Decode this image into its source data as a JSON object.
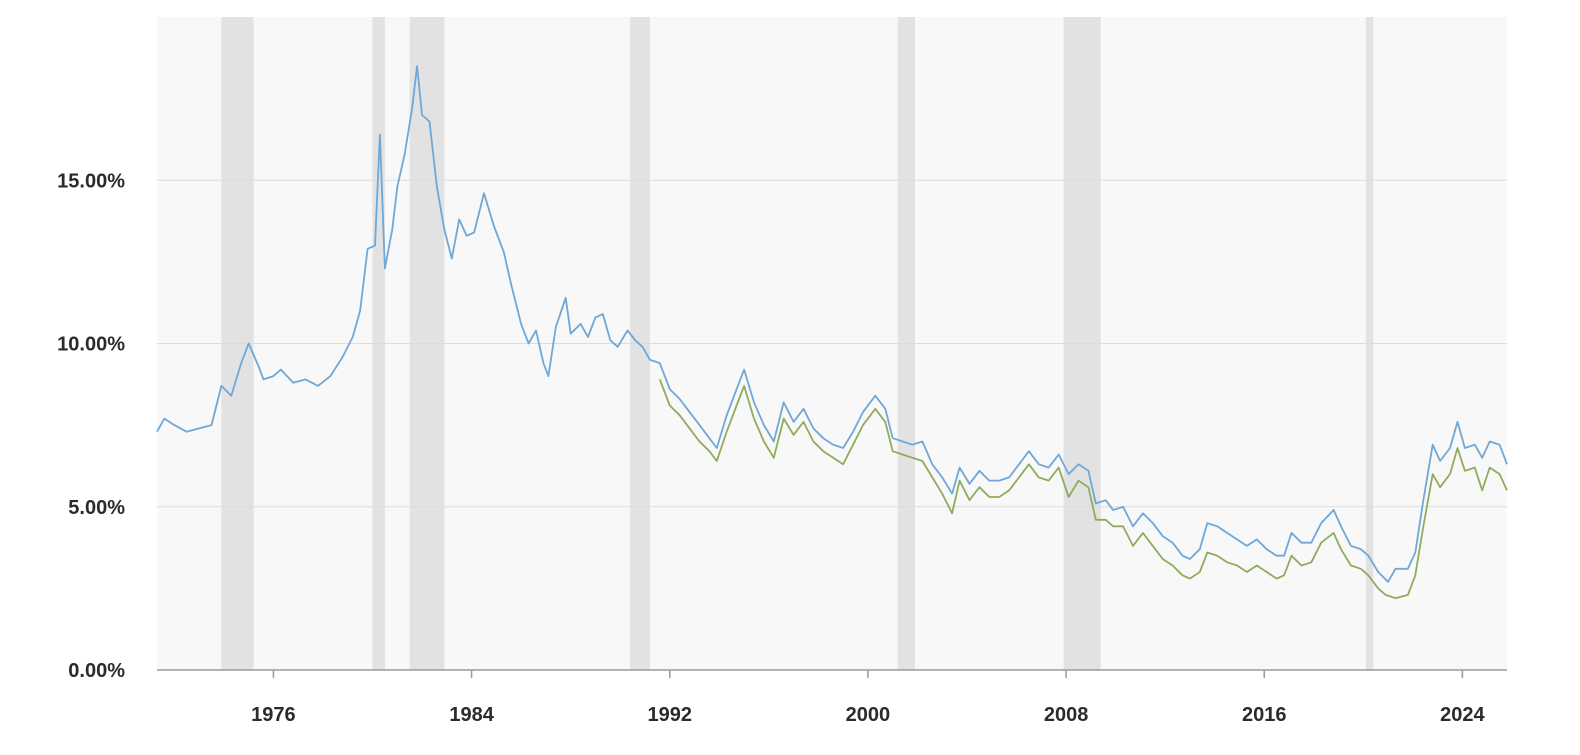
{
  "chart_data": {
    "type": "line",
    "xlim": [
      1971.3,
      2025.8
    ],
    "ylim": [
      0,
      20
    ],
    "x_ticks": [
      {
        "x": 1976,
        "label": "1976"
      },
      {
        "x": 1984,
        "label": "1984"
      },
      {
        "x": 1992,
        "label": "1992"
      },
      {
        "x": 2000,
        "label": "2000"
      },
      {
        "x": 2008,
        "label": "2008"
      },
      {
        "x": 2016,
        "label": "2016"
      },
      {
        "x": 2024,
        "label": "2024"
      }
    ],
    "y_ticks": [
      {
        "y": 0,
        "label": "0.00%"
      },
      {
        "y": 5,
        "label": "5.00%"
      },
      {
        "y": 10,
        "label": "10.00%"
      },
      {
        "y": 15,
        "label": "15.00%"
      }
    ],
    "grid": "horizontal",
    "recession_bands": [
      [
        1973.9,
        1975.2
      ],
      [
        1980.0,
        1980.5
      ],
      [
        1981.5,
        1982.9
      ],
      [
        1990.4,
        1991.2
      ],
      [
        2001.2,
        2001.9
      ],
      [
        2007.9,
        2009.4
      ],
      [
        2020.1,
        2020.4
      ]
    ],
    "series": [
      {
        "color": "#6fa8d6",
        "points": [
          [
            1971.3,
            7.3
          ],
          [
            1971.6,
            7.7
          ],
          [
            1972.0,
            7.5
          ],
          [
            1972.5,
            7.3
          ],
          [
            1973.0,
            7.4
          ],
          [
            1973.5,
            7.5
          ],
          [
            1973.9,
            8.7
          ],
          [
            1974.3,
            8.4
          ],
          [
            1974.7,
            9.4
          ],
          [
            1975.0,
            10.0
          ],
          [
            1975.4,
            9.3
          ],
          [
            1975.6,
            8.9
          ],
          [
            1976.0,
            9.0
          ],
          [
            1976.3,
            9.2
          ],
          [
            1976.8,
            8.8
          ],
          [
            1977.3,
            8.9
          ],
          [
            1977.8,
            8.7
          ],
          [
            1978.3,
            9.0
          ],
          [
            1978.8,
            9.6
          ],
          [
            1979.2,
            10.2
          ],
          [
            1979.5,
            11.0
          ],
          [
            1979.8,
            12.9
          ],
          [
            1980.1,
            13.0
          ],
          [
            1980.3,
            16.4
          ],
          [
            1980.5,
            12.3
          ],
          [
            1980.8,
            13.5
          ],
          [
            1981.0,
            14.8
          ],
          [
            1981.3,
            15.8
          ],
          [
            1981.6,
            17.2
          ],
          [
            1981.8,
            18.5
          ],
          [
            1982.0,
            17.0
          ],
          [
            1982.3,
            16.8
          ],
          [
            1982.6,
            14.8
          ],
          [
            1982.9,
            13.5
          ],
          [
            1983.2,
            12.6
          ],
          [
            1983.5,
            13.8
          ],
          [
            1983.8,
            13.3
          ],
          [
            1984.1,
            13.4
          ],
          [
            1984.5,
            14.6
          ],
          [
            1984.9,
            13.6
          ],
          [
            1985.3,
            12.8
          ],
          [
            1985.6,
            11.8
          ],
          [
            1986.0,
            10.6
          ],
          [
            1986.3,
            10.0
          ],
          [
            1986.6,
            10.4
          ],
          [
            1986.9,
            9.4
          ],
          [
            1987.1,
            9.0
          ],
          [
            1987.4,
            10.5
          ],
          [
            1987.8,
            11.4
          ],
          [
            1988.0,
            10.3
          ],
          [
            1988.4,
            10.6
          ],
          [
            1988.7,
            10.2
          ],
          [
            1989.0,
            10.8
          ],
          [
            1989.3,
            10.9
          ],
          [
            1989.6,
            10.1
          ],
          [
            1989.9,
            9.9
          ],
          [
            1990.3,
            10.4
          ],
          [
            1990.6,
            10.1
          ],
          [
            1990.9,
            9.9
          ],
          [
            1991.2,
            9.5
          ],
          [
            1991.6,
            9.4
          ],
          [
            1992.0,
            8.6
          ],
          [
            1992.4,
            8.3
          ],
          [
            1992.8,
            7.9
          ],
          [
            1993.2,
            7.5
          ],
          [
            1993.6,
            7.1
          ],
          [
            1993.9,
            6.8
          ],
          [
            1994.3,
            7.8
          ],
          [
            1994.7,
            8.6
          ],
          [
            1995.0,
            9.2
          ],
          [
            1995.4,
            8.2
          ],
          [
            1995.8,
            7.5
          ],
          [
            1996.2,
            7.0
          ],
          [
            1996.6,
            8.2
          ],
          [
            1997.0,
            7.6
          ],
          [
            1997.4,
            8.0
          ],
          [
            1997.8,
            7.4
          ],
          [
            1998.2,
            7.1
          ],
          [
            1998.6,
            6.9
          ],
          [
            1999.0,
            6.8
          ],
          [
            1999.4,
            7.3
          ],
          [
            1999.8,
            7.9
          ],
          [
            2000.3,
            8.4
          ],
          [
            2000.7,
            8.0
          ],
          [
            2001.0,
            7.1
          ],
          [
            2001.4,
            7.0
          ],
          [
            2001.8,
            6.9
          ],
          [
            2002.2,
            7.0
          ],
          [
            2002.6,
            6.3
          ],
          [
            2003.0,
            5.9
          ],
          [
            2003.4,
            5.4
          ],
          [
            2003.7,
            6.2
          ],
          [
            2004.1,
            5.7
          ],
          [
            2004.5,
            6.1
          ],
          [
            2004.9,
            5.8
          ],
          [
            2005.3,
            5.8
          ],
          [
            2005.7,
            5.9
          ],
          [
            2006.1,
            6.3
          ],
          [
            2006.5,
            6.7
          ],
          [
            2006.9,
            6.3
          ],
          [
            2007.3,
            6.2
          ],
          [
            2007.7,
            6.6
          ],
          [
            2008.1,
            6.0
          ],
          [
            2008.5,
            6.3
          ],
          [
            2008.9,
            6.1
          ],
          [
            2009.2,
            5.1
          ],
          [
            2009.6,
            5.2
          ],
          [
            2009.9,
            4.9
          ],
          [
            2010.3,
            5.0
          ],
          [
            2010.7,
            4.4
          ],
          [
            2011.1,
            4.8
          ],
          [
            2011.5,
            4.5
          ],
          [
            2011.9,
            4.1
          ],
          [
            2012.3,
            3.9
          ],
          [
            2012.7,
            3.5
          ],
          [
            2013.0,
            3.4
          ],
          [
            2013.4,
            3.7
          ],
          [
            2013.7,
            4.5
          ],
          [
            2014.1,
            4.4
          ],
          [
            2014.5,
            4.2
          ],
          [
            2014.9,
            4.0
          ],
          [
            2015.3,
            3.8
          ],
          [
            2015.7,
            4.0
          ],
          [
            2016.1,
            3.7
          ],
          [
            2016.5,
            3.5
          ],
          [
            2016.8,
            3.5
          ],
          [
            2017.1,
            4.2
          ],
          [
            2017.5,
            3.9
          ],
          [
            2017.9,
            3.9
          ],
          [
            2018.3,
            4.5
          ],
          [
            2018.8,
            4.9
          ],
          [
            2019.1,
            4.4
          ],
          [
            2019.5,
            3.8
          ],
          [
            2019.9,
            3.7
          ],
          [
            2020.2,
            3.5
          ],
          [
            2020.6,
            3.0
          ],
          [
            2021.0,
            2.7
          ],
          [
            2021.3,
            3.1
          ],
          [
            2021.8,
            3.1
          ],
          [
            2022.1,
            3.6
          ],
          [
            2022.4,
            5.1
          ],
          [
            2022.8,
            6.9
          ],
          [
            2023.1,
            6.4
          ],
          [
            2023.5,
            6.8
          ],
          [
            2023.8,
            7.6
          ],
          [
            2024.1,
            6.8
          ],
          [
            2024.5,
            6.9
          ],
          [
            2024.8,
            6.5
          ],
          [
            2025.1,
            7.0
          ],
          [
            2025.5,
            6.9
          ],
          [
            2025.8,
            6.3
          ]
        ]
      },
      {
        "color": "#8fac5c",
        "points": [
          [
            1991.6,
            8.9
          ],
          [
            1992.0,
            8.1
          ],
          [
            1992.4,
            7.8
          ],
          [
            1992.8,
            7.4
          ],
          [
            1993.2,
            7.0
          ],
          [
            1993.6,
            6.7
          ],
          [
            1993.9,
            6.4
          ],
          [
            1994.3,
            7.3
          ],
          [
            1994.7,
            8.1
          ],
          [
            1995.0,
            8.7
          ],
          [
            1995.4,
            7.7
          ],
          [
            1995.8,
            7.0
          ],
          [
            1996.2,
            6.5
          ],
          [
            1996.6,
            7.7
          ],
          [
            1997.0,
            7.2
          ],
          [
            1997.4,
            7.6
          ],
          [
            1997.8,
            7.0
          ],
          [
            1998.2,
            6.7
          ],
          [
            1998.6,
            6.5
          ],
          [
            1999.0,
            6.3
          ],
          [
            1999.4,
            6.9
          ],
          [
            1999.8,
            7.5
          ],
          [
            2000.3,
            8.0
          ],
          [
            2000.7,
            7.6
          ],
          [
            2001.0,
            6.7
          ],
          [
            2001.4,
            6.6
          ],
          [
            2001.8,
            6.5
          ],
          [
            2002.2,
            6.4
          ],
          [
            2002.6,
            5.9
          ],
          [
            2003.0,
            5.4
          ],
          [
            2003.4,
            4.8
          ],
          [
            2003.7,
            5.8
          ],
          [
            2004.1,
            5.2
          ],
          [
            2004.5,
            5.6
          ],
          [
            2004.9,
            5.3
          ],
          [
            2005.3,
            5.3
          ],
          [
            2005.7,
            5.5
          ],
          [
            2006.1,
            5.9
          ],
          [
            2006.5,
            6.3
          ],
          [
            2006.9,
            5.9
          ],
          [
            2007.3,
            5.8
          ],
          [
            2007.7,
            6.2
          ],
          [
            2008.1,
            5.3
          ],
          [
            2008.5,
            5.8
          ],
          [
            2008.9,
            5.6
          ],
          [
            2009.2,
            4.6
          ],
          [
            2009.6,
            4.6
          ],
          [
            2009.9,
            4.4
          ],
          [
            2010.3,
            4.4
          ],
          [
            2010.7,
            3.8
          ],
          [
            2011.1,
            4.2
          ],
          [
            2011.5,
            3.8
          ],
          [
            2011.9,
            3.4
          ],
          [
            2012.3,
            3.2
          ],
          [
            2012.7,
            2.9
          ],
          [
            2013.0,
            2.8
          ],
          [
            2013.4,
            3.0
          ],
          [
            2013.7,
            3.6
          ],
          [
            2014.1,
            3.5
          ],
          [
            2014.5,
            3.3
          ],
          [
            2014.9,
            3.2
          ],
          [
            2015.3,
            3.0
          ],
          [
            2015.7,
            3.2
          ],
          [
            2016.1,
            3.0
          ],
          [
            2016.5,
            2.8
          ],
          [
            2016.8,
            2.9
          ],
          [
            2017.1,
            3.5
          ],
          [
            2017.5,
            3.2
          ],
          [
            2017.9,
            3.3
          ],
          [
            2018.3,
            3.9
          ],
          [
            2018.8,
            4.2
          ],
          [
            2019.1,
            3.7
          ],
          [
            2019.5,
            3.2
          ],
          [
            2019.9,
            3.1
          ],
          [
            2020.2,
            2.9
          ],
          [
            2020.6,
            2.5
          ],
          [
            2020.9,
            2.3
          ],
          [
            2021.3,
            2.2
          ],
          [
            2021.8,
            2.3
          ],
          [
            2022.1,
            2.9
          ],
          [
            2022.4,
            4.3
          ],
          [
            2022.8,
            6.0
          ],
          [
            2023.1,
            5.6
          ],
          [
            2023.5,
            6.0
          ],
          [
            2023.8,
            6.8
          ],
          [
            2024.1,
            6.1
          ],
          [
            2024.5,
            6.2
          ],
          [
            2024.8,
            5.5
          ],
          [
            2025.1,
            6.2
          ],
          [
            2025.5,
            6.0
          ],
          [
            2025.8,
            5.5
          ]
        ]
      }
    ]
  }
}
